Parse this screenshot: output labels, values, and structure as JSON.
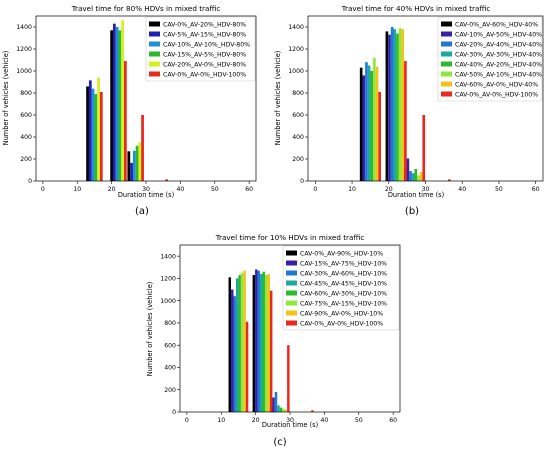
{
  "chart_data": [
    {
      "type": "bar",
      "title": "Travel time for 80% HDVs in mixed traffic",
      "caption": "(a)",
      "xlabel": "Duration time (s)",
      "ylabel": "Number of vehicles (vehicle)",
      "xlim": [
        -2,
        62
      ],
      "ylim": [
        0,
        1500
      ],
      "xticks": [
        0,
        10,
        20,
        30,
        40,
        50,
        60
      ],
      "yticks": [
        0,
        200,
        400,
        600,
        800,
        1000,
        1200,
        1400
      ],
      "grid": false,
      "legend_position": "top-right",
      "bin_centers": [
        15,
        22,
        27,
        34
      ],
      "series": [
        {
          "name": "CAV-0%_AV-20%_HDV-80%",
          "color": "#000000",
          "values": [
            860,
            1370,
            270,
            0
          ]
        },
        {
          "name": "CAV-5%_AV-15%_HDV-80%",
          "color": "#1f1fb4",
          "values": [
            915,
            1430,
            165,
            0
          ]
        },
        {
          "name": "CAV-10%_AV-10%_HDV-80%",
          "color": "#1f8fd6",
          "values": [
            840,
            1400,
            275,
            0
          ]
        },
        {
          "name": "CAV-15%_AV-5%_HDV-80%",
          "color": "#2eb82e",
          "values": [
            790,
            1370,
            320,
            0
          ]
        },
        {
          "name": "CAV-20%_AV-0%_HDV-80%",
          "color": "#d4f01e",
          "values": [
            940,
            1460,
            350,
            0
          ]
        },
        {
          "name": "CAV-0%_AV-0%_HDV-100%",
          "color": "#e8291c",
          "values": [
            810,
            1090,
            600,
            15
          ]
        }
      ]
    },
    {
      "type": "bar",
      "title": "Travel time for 40% HDVs in mixed traffic",
      "caption": "(b)",
      "xlabel": "Duration time (s)",
      "ylabel": "Number of vehicles (vehicle)",
      "xlim": [
        -2,
        62
      ],
      "ylim": [
        0,
        1500
      ],
      "xticks": [
        0,
        10,
        20,
        30,
        40,
        50,
        60
      ],
      "yticks": [
        0,
        200,
        400,
        600,
        800,
        1000,
        1200,
        1400
      ],
      "grid": false,
      "legend_position": "top-right",
      "bin_centers": [
        15,
        22,
        27,
        34
      ],
      "series": [
        {
          "name": "CAV-0%_AV-60%_HDV-40%",
          "color": "#000000",
          "values": [
            1030,
            1360,
            120,
            0
          ]
        },
        {
          "name": "CAV-10%_AV-50%_HDV-40%",
          "color": "#3a1fa8",
          "values": [
            960,
            1330,
            205,
            0
          ]
        },
        {
          "name": "CAV-20%_AV-40%_HDV-40%",
          "color": "#1f78d6",
          "values": [
            1080,
            1400,
            90,
            0
          ]
        },
        {
          "name": "CAV-30%_AV-30%_HDV-40%",
          "color": "#1fa8a0",
          "values": [
            1050,
            1380,
            70,
            0
          ]
        },
        {
          "name": "CAV-40%_AV-20%_HDV-40%",
          "color": "#2eb82e",
          "values": [
            1000,
            1340,
            110,
            0
          ]
        },
        {
          "name": "CAV-50%_AV-10%_HDV-40%",
          "color": "#8fe83a",
          "values": [
            1120,
            1390,
            50,
            0
          ]
        },
        {
          "name": "CAV-60%_AV-0%_HDV-40%",
          "color": "#f5c21b",
          "values": [
            1040,
            1380,
            80,
            0
          ]
        },
        {
          "name": "CAV-0%_AV-0%_HDV-100%",
          "color": "#e8291c",
          "values": [
            810,
            1090,
            600,
            15
          ]
        }
      ]
    },
    {
      "type": "bar",
      "title": "Travel time for 10% HDVs in mixed traffic",
      "caption": "(c)",
      "xlabel": "Duration time (s)",
      "ylabel": "Number of vehicles (vehicle)",
      "xlim": [
        -2,
        62
      ],
      "ylim": [
        0,
        1500
      ],
      "xticks": [
        0,
        10,
        20,
        30,
        40,
        50,
        60
      ],
      "yticks": [
        0,
        200,
        400,
        600,
        800,
        1000,
        1200,
        1400
      ],
      "grid": false,
      "legend_position": "top-right",
      "bin_centers": [
        15,
        22,
        27,
        34
      ],
      "series": [
        {
          "name": "CAV-0%_AV-90%_HDV-10%",
          "color": "#000000",
          "values": [
            1210,
            1230,
            50,
            0
          ]
        },
        {
          "name": "CAV-15%_AV-75%_HDV-10%",
          "color": "#3a1fa8",
          "values": [
            1100,
            1280,
            130,
            0
          ]
        },
        {
          "name": "CAV-30%_AV-60%_HDV-10%",
          "color": "#1f78d6",
          "values": [
            1040,
            1270,
            180,
            0
          ]
        },
        {
          "name": "CAV-45%_AV-45%_HDV-10%",
          "color": "#1fa8a0",
          "values": [
            1200,
            1240,
            60,
            0
          ]
        },
        {
          "name": "CAV-60%_AV-30%_HDV-10%",
          "color": "#2eb82e",
          "values": [
            1230,
            1260,
            40,
            0
          ]
        },
        {
          "name": "CAV-75%_AV-15%_HDV-10%",
          "color": "#8fe83a",
          "values": [
            1250,
            1230,
            30,
            0
          ]
        },
        {
          "name": "CAV-90%_AV-0%_HDV-10%",
          "color": "#f5c21b",
          "values": [
            1270,
            1240,
            20,
            0
          ]
        },
        {
          "name": "CAV-0%_AV-0%_HDV-100%",
          "color": "#e8291c",
          "values": [
            810,
            1090,
            600,
            15
          ]
        }
      ]
    }
  ]
}
